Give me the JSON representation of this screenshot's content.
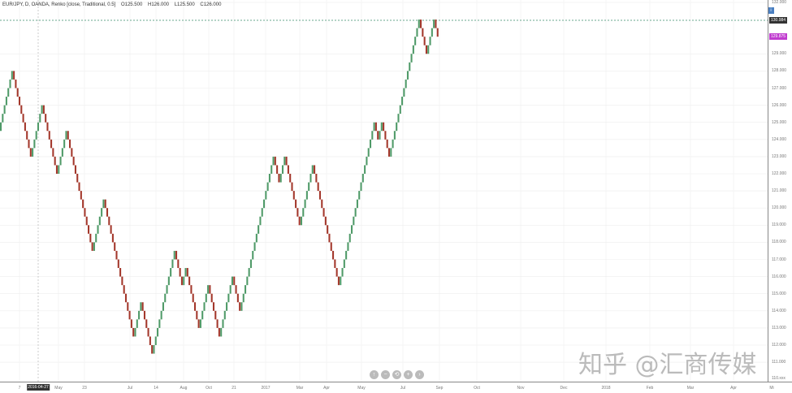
{
  "legend": {
    "symbol": "EUR/JPY, D, OANDA, Renko [close, Traditional, 0.5]",
    "open": "O125.500",
    "high": "H126.000",
    "low": "L125.500",
    "close": "C126.000"
  },
  "price_axis": {
    "labels": [
      "132.000",
      "129.000",
      "128.000",
      "127.000",
      "126.000",
      "125.000",
      "124.000",
      "123.000",
      "122.000",
      "121.000",
      "120.000",
      "119.000",
      "118.000",
      "117.000",
      "116.000",
      "115.000",
      "114.000",
      "113.000",
      "112.000",
      "111.000"
    ],
    "bottom_label": "110.xxx",
    "last_price_tag": "130.984",
    "current_tag": "129.875"
  },
  "time_axis": {
    "labels": [
      "7",
      "May",
      "23",
      "Jul",
      "14",
      "Aug",
      "Oct",
      "21",
      "2017",
      "Mar",
      "Apr",
      "May",
      "Jul",
      "Sep",
      "Oct",
      "Nov",
      "Dec",
      "2018",
      "Feb",
      "Mar",
      "Apr",
      "Mi"
    ],
    "cursor_date": "2016-04-27"
  },
  "nav_buttons": [
    "↑",
    "−",
    "⟲",
    "+",
    "›"
  ],
  "watermark": "知乎 @汇商传媒",
  "colors": {
    "up": "#4f9a68",
    "down": "#a3372b",
    "last_tag": "#333333",
    "current_tag": "#c03ccf"
  },
  "chart_data": {
    "type": "renko",
    "brick_size": 0.5,
    "ylim": [
      110.5,
      132.2
    ],
    "reversal_prices": [
      124.5,
      128,
      123,
      124.5,
      126,
      122,
      124.5,
      117.5,
      120.5,
      112.5,
      114.5,
      111.5,
      117.5,
      115.5,
      116.5,
      113,
      115.5,
      112.5,
      116,
      114,
      123,
      121.5,
      123,
      119,
      122.5,
      115.5,
      125,
      124,
      125,
      123,
      131,
      129,
      131,
      130
    ]
  }
}
